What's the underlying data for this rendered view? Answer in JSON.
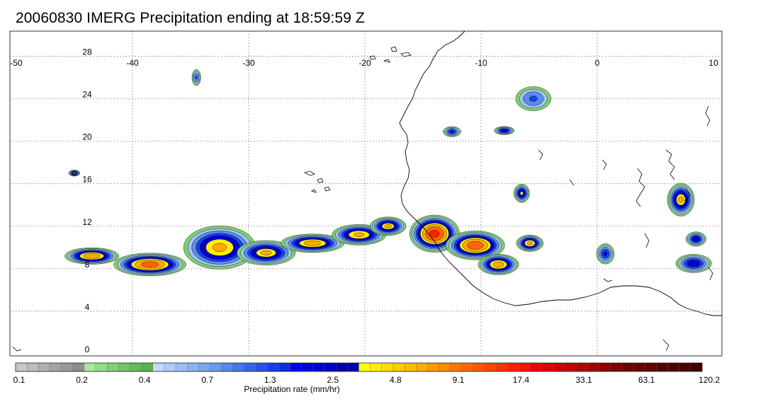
{
  "title": "20060830 IMERG Precipitation ending at 18:59:59 Z",
  "map": {
    "lon_range": [
      -50,
      10
    ],
    "lat_range": [
      0,
      30
    ],
    "lon_ticks": [
      "-50",
      "-40",
      "-30",
      "-20",
      "-10",
      "0",
      "10"
    ],
    "lat_ticks": [
      "0",
      "4",
      "8",
      "12",
      "16",
      "20",
      "24",
      "28"
    ],
    "gridlines": "dotted"
  },
  "colorbar": {
    "label": "Precipitation rate (mm/hr)",
    "tick_labels": [
      "0.1",
      "0.2",
      "0.4",
      "0.7",
      "1.3",
      "2.5",
      "4.8",
      "9.1",
      "17.4",
      "33.1",
      "63.1",
      "120.2"
    ],
    "colors": [
      "#c8c8c8",
      "#bcbcbc",
      "#b0b0b0",
      "#a4a4a4",
      "#989898",
      "#8c8c8c",
      "#a8e6a0",
      "#94dc8c",
      "#80d278",
      "#70c868",
      "#62be5c",
      "#56b450",
      "#c6d8fa",
      "#b2cbf8",
      "#a0bff6",
      "#8eb3f4",
      "#7ba7f2",
      "#689bf0",
      "#5688ee",
      "#4676ec",
      "#3664ea",
      "#2652e8",
      "#1640e6",
      "#0a2ee4",
      "#0000f0",
      "#0000e0",
      "#0000d0",
      "#0000c0",
      "#0000b0",
      "#0000a0",
      "#ffff00",
      "#ffee00",
      "#ffdd00",
      "#ffcc00",
      "#ffbb00",
      "#ffaa00",
      "#ff9900",
      "#ff8800",
      "#ff7700",
      "#ff6600",
      "#ff5500",
      "#ff4400",
      "#ff3300",
      "#ff2200",
      "#ff1100",
      "#f00000",
      "#e00000",
      "#d00000",
      "#c00000",
      "#b00000",
      "#a00000",
      "#900000",
      "#800000",
      "#700000",
      "#6a0000",
      "#620000",
      "#5a0000",
      "#520000",
      "#4a0000",
      "#420000"
    ]
  },
  "precip_cells": [
    {
      "lon": -43.5,
      "lat": 9.2,
      "rx": 2.4,
      "ry": 0.8,
      "peak": 10
    },
    {
      "lon": -38.5,
      "lat": 8.4,
      "rx": 3.2,
      "ry": 1.1,
      "peak": 14
    },
    {
      "lon": -32.5,
      "lat": 10.0,
      "rx": 3.2,
      "ry": 2.1,
      "peak": 8
    },
    {
      "lon": -28.5,
      "lat": 9.5,
      "rx": 2.6,
      "ry": 1.2,
      "peak": 7
    },
    {
      "lon": -24.5,
      "lat": 10.4,
      "rx": 2.8,
      "ry": 0.9,
      "peak": 9
    },
    {
      "lon": -20.5,
      "lat": 11.2,
      "rx": 2.4,
      "ry": 1.0,
      "peak": 8
    },
    {
      "lon": -18.0,
      "lat": 12.0,
      "rx": 1.6,
      "ry": 0.9,
      "peak": 7
    },
    {
      "lon": -14.0,
      "lat": 11.3,
      "rx": 2.2,
      "ry": 1.8,
      "peak": 20
    },
    {
      "lon": -10.5,
      "lat": 10.2,
      "rx": 2.6,
      "ry": 1.4,
      "peak": 15
    },
    {
      "lon": -8.5,
      "lat": 8.4,
      "rx": 1.8,
      "ry": 1.0,
      "peak": 9
    },
    {
      "lon": -5.8,
      "lat": 10.4,
      "rx": 1.2,
      "ry": 0.8,
      "peak": 8
    },
    {
      "lon": -6.5,
      "lat": 15.1,
      "rx": 0.7,
      "ry": 0.9,
      "peak": 5
    },
    {
      "lon": -8.0,
      "lat": 21.0,
      "rx": 0.9,
      "ry": 0.4,
      "peak": 4
    },
    {
      "lon": -5.5,
      "lat": 24.0,
      "rx": 1.6,
      "ry": 1.2,
      "peak": 2
    },
    {
      "lon": -12.5,
      "lat": 20.9,
      "rx": 0.8,
      "ry": 0.5,
      "peak": 3
    },
    {
      "lon": 7.2,
      "lat": 14.5,
      "rx": 1.2,
      "ry": 1.6,
      "peak": 7
    },
    {
      "lon": 8.3,
      "lat": 8.5,
      "rx": 1.6,
      "ry": 0.9,
      "peak": 4
    },
    {
      "lon": 0.7,
      "lat": 9.4,
      "rx": 0.8,
      "ry": 1.0,
      "peak": 3
    },
    {
      "lon": 8.5,
      "lat": 10.8,
      "rx": 0.9,
      "ry": 0.7,
      "peak": 4
    },
    {
      "lon": -45.0,
      "lat": 17.0,
      "rx": 0.5,
      "ry": 0.3,
      "peak": 5
    },
    {
      "lon": -34.5,
      "lat": 26.0,
      "rx": 0.4,
      "ry": 0.8,
      "peak": 2
    }
  ]
}
